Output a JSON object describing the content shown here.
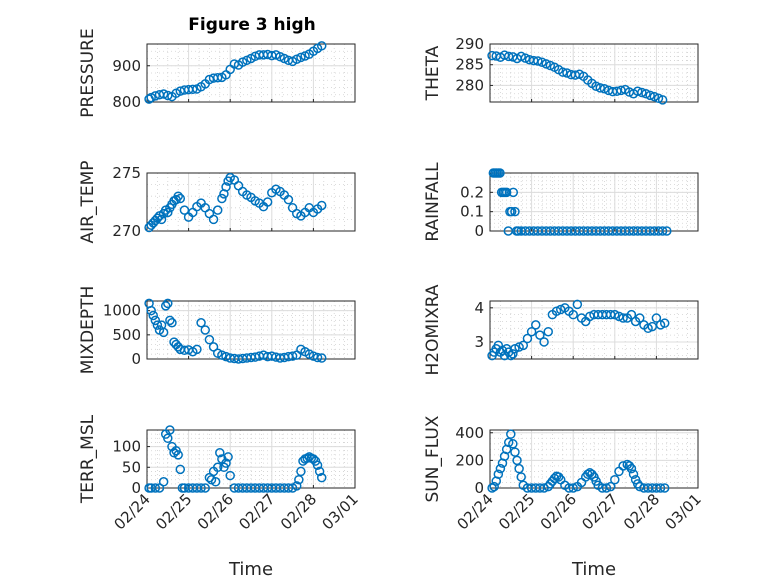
{
  "title": "Figure 3 high",
  "marker_color": "#0072BD",
  "x_tick_labels": [
    "02/24",
    "02/25",
    "02/26",
    "02/27",
    "02/28",
    "03/01"
  ],
  "xlabel": "Time",
  "chart_data": [
    {
      "type": "scatter",
      "name": "pressure",
      "ylabel": "PRESSURE",
      "ylim": [
        800,
        960
      ],
      "yticks": [
        800,
        900
      ],
      "xlim": [
        0,
        5
      ],
      "grid": true,
      "x": [
        0.05,
        0.1,
        0.2,
        0.3,
        0.4,
        0.5,
        0.6,
        0.7,
        0.8,
        0.9,
        1.0,
        1.1,
        1.2,
        1.3,
        1.4,
        1.5,
        1.6,
        1.7,
        1.8,
        1.9,
        2.0,
        2.1,
        2.2,
        2.3,
        2.4,
        2.5,
        2.6,
        2.7,
        2.8,
        2.9,
        3.0,
        3.1,
        3.2,
        3.3,
        3.4,
        3.5,
        3.6,
        3.7,
        3.8,
        3.9,
        4.0,
        4.1,
        4.2
      ],
      "y": [
        808,
        812,
        817,
        820,
        822,
        818,
        815,
        824,
        830,
        833,
        834,
        835,
        836,
        842,
        850,
        862,
        866,
        867,
        868,
        875,
        890,
        905,
        902,
        910,
        915,
        920,
        926,
        930,
        930,
        931,
        928,
        930,
        925,
        920,
        915,
        912,
        918,
        923,
        927,
        932,
        940,
        948,
        955
      ]
    },
    {
      "type": "scatter",
      "name": "theta",
      "ylabel": "THETA",
      "ylim": [
        276,
        290
      ],
      "yticks": [
        280,
        285,
        290
      ],
      "xlim": [
        0,
        5
      ],
      "grid": true,
      "x": [
        0.05,
        0.15,
        0.25,
        0.35,
        0.45,
        0.55,
        0.65,
        0.75,
        0.85,
        0.95,
        1.05,
        1.15,
        1.25,
        1.35,
        1.45,
        1.55,
        1.65,
        1.75,
        1.85,
        1.95,
        2.05,
        2.15,
        2.25,
        2.35,
        2.45,
        2.55,
        2.65,
        2.75,
        2.85,
        2.95,
        3.05,
        3.15,
        3.25,
        3.35,
        3.45,
        3.55,
        3.65,
        3.75,
        3.85,
        3.95,
        4.05,
        4.15
      ],
      "y": [
        287.2,
        287.1,
        286.8,
        287.3,
        287,
        286.9,
        286.5,
        287,
        286.6,
        286.2,
        286,
        285.9,
        285.6,
        285.2,
        284.8,
        284.4,
        283.8,
        283.2,
        283,
        282.6,
        282.5,
        282.7,
        282.2,
        281.3,
        280.5,
        279.8,
        279.4,
        279.2,
        278.8,
        278.5,
        278.6,
        278.8,
        279,
        278.4,
        278,
        278.6,
        278.3,
        278,
        277.6,
        277.3,
        276.9,
        276.5
      ]
    },
    {
      "type": "scatter",
      "name": "air_temp",
      "ylabel": "AIR_TEMP",
      "ylim": [
        270,
        275
      ],
      "yticks": [
        270,
        275
      ],
      "xlim": [
        0,
        5
      ],
      "grid": true,
      "x": [
        0.05,
        0.1,
        0.15,
        0.2,
        0.25,
        0.3,
        0.35,
        0.4,
        0.45,
        0.5,
        0.55,
        0.6,
        0.65,
        0.7,
        0.75,
        0.8,
        0.9,
        1.0,
        1.1,
        1.2,
        1.3,
        1.4,
        1.5,
        1.6,
        1.7,
        1.8,
        1.85,
        1.9,
        1.95,
        2.0,
        2.1,
        2.2,
        2.3,
        2.4,
        2.5,
        2.6,
        2.7,
        2.8,
        2.9,
        3.0,
        3.1,
        3.2,
        3.3,
        3.4,
        3.5,
        3.6,
        3.7,
        3.8,
        3.9,
        4.0,
        4.1,
        4.2
      ],
      "y": [
        270.3,
        270.5,
        270.7,
        270.9,
        271.1,
        271.3,
        271,
        271.5,
        271.8,
        271.6,
        272,
        272.3,
        272.6,
        272.7,
        273,
        272.8,
        271.8,
        271.2,
        271.6,
        272.1,
        272.4,
        272,
        271.5,
        271,
        271.8,
        272.8,
        273.2,
        273.8,
        274.3,
        274.6,
        274.4,
        273.9,
        273.4,
        273.1,
        272.9,
        272.6,
        272.4,
        272.1,
        272.5,
        273.3,
        273.6,
        273.4,
        273.1,
        272.7,
        272,
        271.5,
        271.3,
        271.6,
        272,
        271.6,
        271.9,
        272.2
      ]
    },
    {
      "type": "scatter",
      "name": "rainfall",
      "ylabel": "RAINFALL",
      "ylim": [
        0,
        0.3
      ],
      "yticks": [
        0,
        0.1,
        0.2
      ],
      "xlim": [
        0,
        5
      ],
      "grid": true,
      "x": [
        0.08,
        0.12,
        0.16,
        0.2,
        0.24,
        0.28,
        0.32,
        0.36,
        0.4,
        0.44,
        0.48,
        0.52,
        0.56,
        0.6,
        0.64,
        0.68,
        0.75,
        0.85,
        0.95,
        1.05,
        1.15,
        1.25,
        1.35,
        1.45,
        1.55,
        1.65,
        1.75,
        1.85,
        1.95,
        2.05,
        2.15,
        2.25,
        2.35,
        2.45,
        2.55,
        2.65,
        2.75,
        2.85,
        2.95,
        3.05,
        3.15,
        3.25,
        3.35,
        3.45,
        3.55,
        3.65,
        3.75,
        3.85,
        3.95,
        4.05,
        4.15,
        4.25
      ],
      "y": [
        0.3,
        0.3,
        0.3,
        0.3,
        0.3,
        0.2,
        0.2,
        0.2,
        0.2,
        0,
        0.1,
        0.1,
        0.2,
        0.1,
        0,
        0,
        0,
        0,
        0,
        0,
        0,
        0,
        0,
        0,
        0,
        0,
        0,
        0,
        0,
        0,
        0,
        0,
        0,
        0,
        0,
        0,
        0,
        0,
        0,
        0,
        0,
        0,
        0,
        0,
        0,
        0,
        0,
        0,
        0,
        0,
        0,
        0
      ]
    },
    {
      "type": "scatter",
      "name": "mixdepth",
      "ylabel": "MIXDEPTH",
      "ylim": [
        0,
        1200
      ],
      "yticks": [
        0,
        500,
        1000
      ],
      "xlim": [
        0,
        5
      ],
      "grid": true,
      "x": [
        0.05,
        0.1,
        0.15,
        0.2,
        0.25,
        0.3,
        0.35,
        0.4,
        0.45,
        0.5,
        0.55,
        0.6,
        0.65,
        0.7,
        0.75,
        0.8,
        0.9,
        1.0,
        1.1,
        1.2,
        1.3,
        1.4,
        1.5,
        1.6,
        1.7,
        1.8,
        1.9,
        2.0,
        2.1,
        2.2,
        2.3,
        2.4,
        2.5,
        2.6,
        2.7,
        2.8,
        2.9,
        3.0,
        3.1,
        3.2,
        3.3,
        3.4,
        3.5,
        3.6,
        3.7,
        3.8,
        3.9,
        4.0,
        4.1,
        4.2
      ],
      "y": [
        1150,
        1000,
        900,
        800,
        700,
        600,
        700,
        550,
        1100,
        1150,
        800,
        750,
        350,
        300,
        250,
        200,
        180,
        190,
        150,
        200,
        750,
        600,
        400,
        250,
        120,
        80,
        50,
        20,
        10,
        0,
        10,
        20,
        30,
        40,
        60,
        80,
        50,
        60,
        40,
        20,
        30,
        50,
        60,
        80,
        200,
        150,
        100,
        60,
        30,
        20
      ]
    },
    {
      "type": "scatter",
      "name": "h2omixra",
      "ylabel": "H2OMIXRA",
      "ylim": [
        2.5,
        4.2
      ],
      "yticks": [
        3,
        4
      ],
      "xlim": [
        0,
        5
      ],
      "grid": true,
      "x": [
        0.05,
        0.1,
        0.15,
        0.2,
        0.25,
        0.3,
        0.35,
        0.4,
        0.45,
        0.5,
        0.55,
        0.6,
        0.7,
        0.8,
        0.9,
        1.0,
        1.1,
        1.2,
        1.3,
        1.4,
        1.5,
        1.6,
        1.7,
        1.8,
        1.9,
        2.0,
        2.1,
        2.2,
        2.3,
        2.4,
        2.5,
        2.6,
        2.7,
        2.8,
        2.9,
        3.0,
        3.1,
        3.2,
        3.3,
        3.4,
        3.5,
        3.6,
        3.7,
        3.8,
        3.9,
        4.0,
        4.1,
        4.2
      ],
      "y": [
        2.6,
        2.7,
        2.8,
        2.9,
        2.7,
        2.75,
        2.6,
        2.8,
        2.7,
        2.6,
        2.65,
        2.8,
        2.85,
        2.9,
        3.1,
        3.3,
        3.5,
        3.2,
        3.0,
        3.3,
        3.8,
        3.9,
        3.95,
        4.0,
        3.9,
        3.8,
        4.1,
        3.7,
        3.6,
        3.75,
        3.8,
        3.8,
        3.8,
        3.8,
        3.8,
        3.8,
        3.75,
        3.7,
        3.7,
        3.8,
        3.6,
        3.7,
        3.5,
        3.4,
        3.45,
        3.7,
        3.5,
        3.55
      ]
    },
    {
      "type": "scatter",
      "name": "terr_msl",
      "ylabel": "TERR_MSL",
      "ylim": [
        0,
        140
      ],
      "yticks": [
        0,
        50,
        100
      ],
      "xlim": [
        0,
        5
      ],
      "grid": true,
      "x": [
        0.05,
        0.1,
        0.2,
        0.3,
        0.4,
        0.45,
        0.5,
        0.55,
        0.6,
        0.65,
        0.7,
        0.75,
        0.8,
        0.85,
        0.9,
        1.0,
        1.1,
        1.2,
        1.3,
        1.4,
        1.5,
        1.55,
        1.6,
        1.65,
        1.7,
        1.75,
        1.8,
        1.85,
        1.9,
        1.95,
        2.0,
        2.1,
        2.2,
        2.3,
        2.4,
        2.5,
        2.6,
        2.7,
        2.8,
        2.9,
        3.0,
        3.1,
        3.2,
        3.3,
        3.4,
        3.5,
        3.6,
        3.65,
        3.7,
        3.75,
        3.8,
        3.85,
        3.9,
        3.95,
        4.0,
        4.05,
        4.1,
        4.15,
        4.2
      ],
      "y": [
        0,
        0,
        0,
        0,
        15,
        130,
        120,
        140,
        100,
        85,
        90,
        80,
        45,
        0,
        0,
        0,
        0,
        0,
        0,
        0,
        25,
        20,
        40,
        15,
        50,
        85,
        70,
        50,
        60,
        75,
        30,
        0,
        0,
        0,
        0,
        0,
        0,
        0,
        0,
        0,
        0,
        0,
        0,
        0,
        0,
        0,
        5,
        20,
        40,
        65,
        70,
        72,
        75,
        72,
        70,
        65,
        55,
        40,
        25
      ]
    },
    {
      "type": "scatter",
      "name": "sun_flux",
      "ylabel": "SUN_FLUX",
      "ylim": [
        0,
        420
      ],
      "yticks": [
        0,
        200,
        400
      ],
      "xlim": [
        0,
        5
      ],
      "grid": true,
      "x": [
        0.05,
        0.1,
        0.15,
        0.2,
        0.25,
        0.3,
        0.35,
        0.4,
        0.45,
        0.5,
        0.55,
        0.6,
        0.65,
        0.7,
        0.75,
        0.8,
        0.9,
        1.0,
        1.1,
        1.2,
        1.3,
        1.4,
        1.45,
        1.5,
        1.55,
        1.6,
        1.65,
        1.7,
        1.8,
        1.9,
        2.0,
        2.1,
        2.2,
        2.3,
        2.35,
        2.4,
        2.45,
        2.5,
        2.55,
        2.6,
        2.7,
        2.8,
        2.9,
        3.0,
        3.1,
        3.2,
        3.3,
        3.35,
        3.4,
        3.45,
        3.5,
        3.55,
        3.6,
        3.7,
        3.8,
        3.9,
        4.0,
        4.1,
        4.2
      ],
      "y": [
        0,
        10,
        50,
        100,
        140,
        180,
        230,
        280,
        330,
        390,
        320,
        260,
        200,
        140,
        80,
        20,
        0,
        0,
        0,
        0,
        0,
        10,
        30,
        50,
        70,
        85,
        80,
        60,
        20,
        0,
        0,
        10,
        40,
        80,
        100,
        110,
        100,
        80,
        50,
        20,
        0,
        0,
        10,
        60,
        120,
        160,
        170,
        160,
        140,
        100,
        60,
        30,
        10,
        0,
        0,
        0,
        0,
        0,
        0
      ]
    }
  ]
}
